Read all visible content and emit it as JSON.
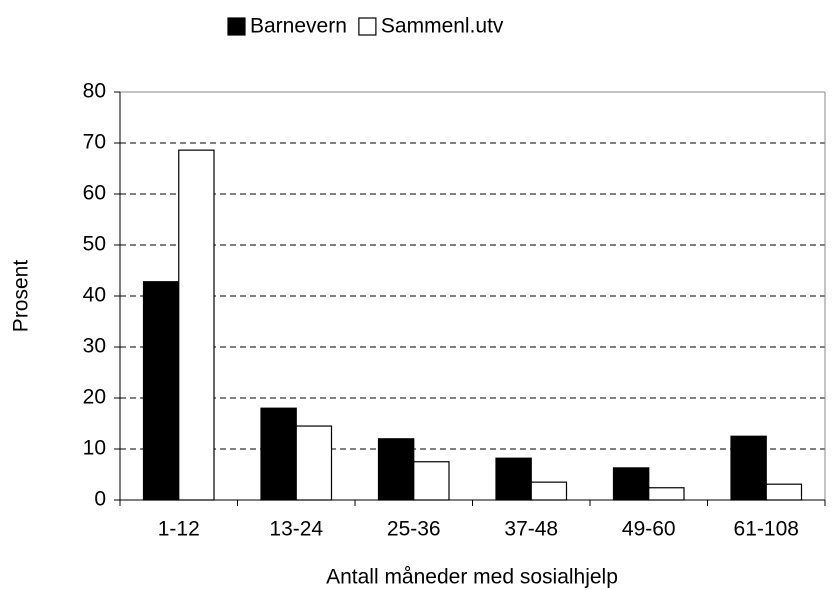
{
  "chart_data": {
    "type": "bar",
    "xlabel": "Antall måneder med sosialhjelp",
    "ylabel": "Prosent",
    "categories": [
      "1-12",
      "13-24",
      "25-36",
      "37-48",
      "49-60",
      "61-108"
    ],
    "series": [
      {
        "name": "Barnevern",
        "color": "#000000",
        "values": [
          42.8,
          18,
          12,
          8.2,
          6.3,
          12.5
        ]
      },
      {
        "name": "Sammenl.utv",
        "color": "#ffffff",
        "values": [
          68.6,
          14.5,
          7.5,
          3.5,
          2.4,
          3.1
        ]
      }
    ],
    "ylim": [
      0,
      80
    ],
    "yticks": [
      0,
      10,
      20,
      30,
      40,
      50,
      60,
      70,
      80
    ],
    "grid": true,
    "legend": "top"
  }
}
